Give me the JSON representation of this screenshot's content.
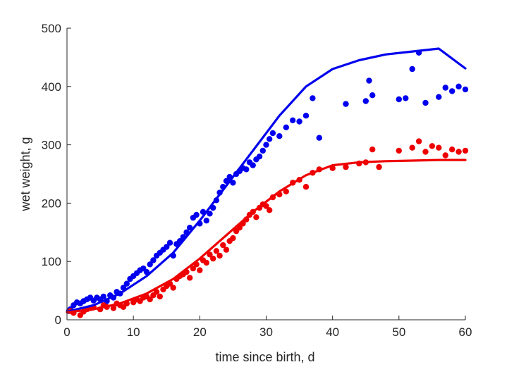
{
  "chart_data": {
    "type": "scatter",
    "xlabel": "time since birth, d",
    "ylabel": "wet weight, g",
    "xlim": [
      0,
      60
    ],
    "ylim": [
      0,
      500
    ],
    "xticks": [
      0,
      10,
      20,
      30,
      40,
      50,
      60
    ],
    "yticks": [
      0,
      100,
      200,
      300,
      400,
      500
    ],
    "grid": false,
    "box": false,
    "series": [
      {
        "color": "#0000ee",
        "points": [
          [
            0.3,
            15
          ],
          [
            0.5,
            18
          ],
          [
            1,
            25
          ],
          [
            1.5,
            30
          ],
          [
            2,
            28
          ],
          [
            2.5,
            32
          ],
          [
            3,
            35
          ],
          [
            3.5,
            38
          ],
          [
            4,
            33
          ],
          [
            4.5,
            38
          ],
          [
            5,
            35
          ],
          [
            5.5,
            40
          ],
          [
            6,
            32
          ],
          [
            6.5,
            42
          ],
          [
            7,
            38
          ],
          [
            7.5,
            48
          ],
          [
            8,
            45
          ],
          [
            8.5,
            55
          ],
          [
            9,
            62
          ],
          [
            9.5,
            70
          ],
          [
            10,
            75
          ],
          [
            10.5,
            80
          ],
          [
            11,
            85
          ],
          [
            11.5,
            88
          ],
          [
            12,
            82
          ],
          [
            12.5,
            95
          ],
          [
            13,
            102
          ],
          [
            13.5,
            110
          ],
          [
            14,
            115
          ],
          [
            14.5,
            120
          ],
          [
            15,
            125
          ],
          [
            15.5,
            132
          ],
          [
            16,
            110
          ],
          [
            16.5,
            130
          ],
          [
            17,
            135
          ],
          [
            17.5,
            142
          ],
          [
            18,
            150
          ],
          [
            18.5,
            158
          ],
          [
            19,
            175
          ],
          [
            19.5,
            180
          ],
          [
            20,
            165
          ],
          [
            20.5,
            185
          ],
          [
            21,
            170
          ],
          [
            21.5,
            182
          ],
          [
            22,
            192
          ],
          [
            22.5,
            205
          ],
          [
            23,
            218
          ],
          [
            23.5,
            228
          ],
          [
            24,
            238
          ],
          [
            24.5,
            245
          ],
          [
            25,
            235
          ],
          [
            25.5,
            250
          ],
          [
            26,
            255
          ],
          [
            26.5,
            260
          ],
          [
            27,
            258
          ],
          [
            27.5,
            270
          ],
          [
            28,
            265
          ],
          [
            28.5,
            275
          ],
          [
            29,
            280
          ],
          [
            29.5,
            290
          ],
          [
            30,
            300
          ],
          [
            30.5,
            310
          ],
          [
            31,
            320
          ],
          [
            32,
            315
          ],
          [
            33,
            330
          ],
          [
            34,
            342
          ],
          [
            35,
            340
          ],
          [
            36,
            350
          ],
          [
            37,
            380
          ],
          [
            38,
            312
          ],
          [
            42,
            370
          ],
          [
            45,
            375
          ],
          [
            45.5,
            410
          ],
          [
            46,
            385
          ],
          [
            50,
            378
          ],
          [
            51,
            380
          ],
          [
            52,
            430
          ],
          [
            53,
            458
          ],
          [
            54,
            372
          ],
          [
            56,
            382
          ],
          [
            57,
            398
          ],
          [
            58,
            392
          ],
          [
            59,
            400
          ],
          [
            60,
            395
          ]
        ],
        "fit": [
          [
            0,
            14
          ],
          [
            4,
            25
          ],
          [
            8,
            45
          ],
          [
            12,
            75
          ],
          [
            16,
            115
          ],
          [
            20,
            170
          ],
          [
            24,
            230
          ],
          [
            28,
            290
          ],
          [
            32,
            350
          ],
          [
            36,
            400
          ],
          [
            40,
            430
          ],
          [
            44,
            445
          ],
          [
            48,
            455
          ],
          [
            52,
            460
          ],
          [
            56,
            465
          ],
          [
            60,
            431
          ]
        ]
      },
      {
        "color": "#ee0000",
        "points": [
          [
            0.5,
            15
          ],
          [
            1,
            12
          ],
          [
            2,
            8
          ],
          [
            2.5,
            14
          ],
          [
            3,
            18
          ],
          [
            3.5,
            20
          ],
          [
            4,
            22
          ],
          [
            5,
            18
          ],
          [
            5.5,
            25
          ],
          [
            6,
            22
          ],
          [
            7,
            20
          ],
          [
            7.5,
            28
          ],
          [
            8,
            25
          ],
          [
            8.5,
            22
          ],
          [
            9,
            28
          ],
          [
            10,
            30
          ],
          [
            10.5,
            35
          ],
          [
            11,
            32
          ],
          [
            11.5,
            38
          ],
          [
            12,
            40
          ],
          [
            12.5,
            35
          ],
          [
            13,
            42
          ],
          [
            13.5,
            48
          ],
          [
            14,
            40
          ],
          [
            14.5,
            52
          ],
          [
            15,
            58
          ],
          [
            15.5,
            62
          ],
          [
            16,
            55
          ],
          [
            16.5,
            70
          ],
          [
            17,
            75
          ],
          [
            17.5,
            78
          ],
          [
            18,
            82
          ],
          [
            18.5,
            72
          ],
          [
            19,
            88
          ],
          [
            19.5,
            95
          ],
          [
            20,
            85
          ],
          [
            20.5,
            102
          ],
          [
            21,
            98
          ],
          [
            21.5,
            112
          ],
          [
            22,
            105
          ],
          [
            22.5,
            118
          ],
          [
            23,
            110
          ],
          [
            23.5,
            128
          ],
          [
            24,
            120
          ],
          [
            24.5,
            135
          ],
          [
            25,
            140
          ],
          [
            25.5,
            152
          ],
          [
            26,
            158
          ],
          [
            26.5,
            165
          ],
          [
            27,
            172
          ],
          [
            27.5,
            180
          ],
          [
            28,
            185
          ],
          [
            28.5,
            176
          ],
          [
            29,
            192
          ],
          [
            29.5,
            198
          ],
          [
            30,
            195
          ],
          [
            30.5,
            188
          ],
          [
            31,
            210
          ],
          [
            32,
            215
          ],
          [
            33,
            220
          ],
          [
            34,
            235
          ],
          [
            35,
            240
          ],
          [
            36,
            228
          ],
          [
            37,
            252
          ],
          [
            38,
            258
          ],
          [
            40,
            260
          ],
          [
            42,
            262
          ],
          [
            44,
            268
          ],
          [
            45,
            270
          ],
          [
            46,
            292
          ],
          [
            47,
            262
          ],
          [
            50,
            290
          ],
          [
            52,
            295
          ],
          [
            53,
            306
          ],
          [
            54,
            288
          ],
          [
            55,
            298
          ],
          [
            56,
            295
          ],
          [
            57,
            282
          ],
          [
            58,
            292
          ],
          [
            59,
            288
          ],
          [
            60,
            290
          ]
        ],
        "fit": [
          [
            0,
            13
          ],
          [
            4,
            18
          ],
          [
            8,
            28
          ],
          [
            12,
            45
          ],
          [
            16,
            70
          ],
          [
            20,
            105
          ],
          [
            24,
            145
          ],
          [
            28,
            185
          ],
          [
            32,
            220
          ],
          [
            36,
            248
          ],
          [
            40,
            265
          ],
          [
            44,
            270
          ],
          [
            48,
            272
          ],
          [
            52,
            273
          ],
          [
            56,
            274
          ],
          [
            60,
            274
          ]
        ]
      }
    ]
  }
}
